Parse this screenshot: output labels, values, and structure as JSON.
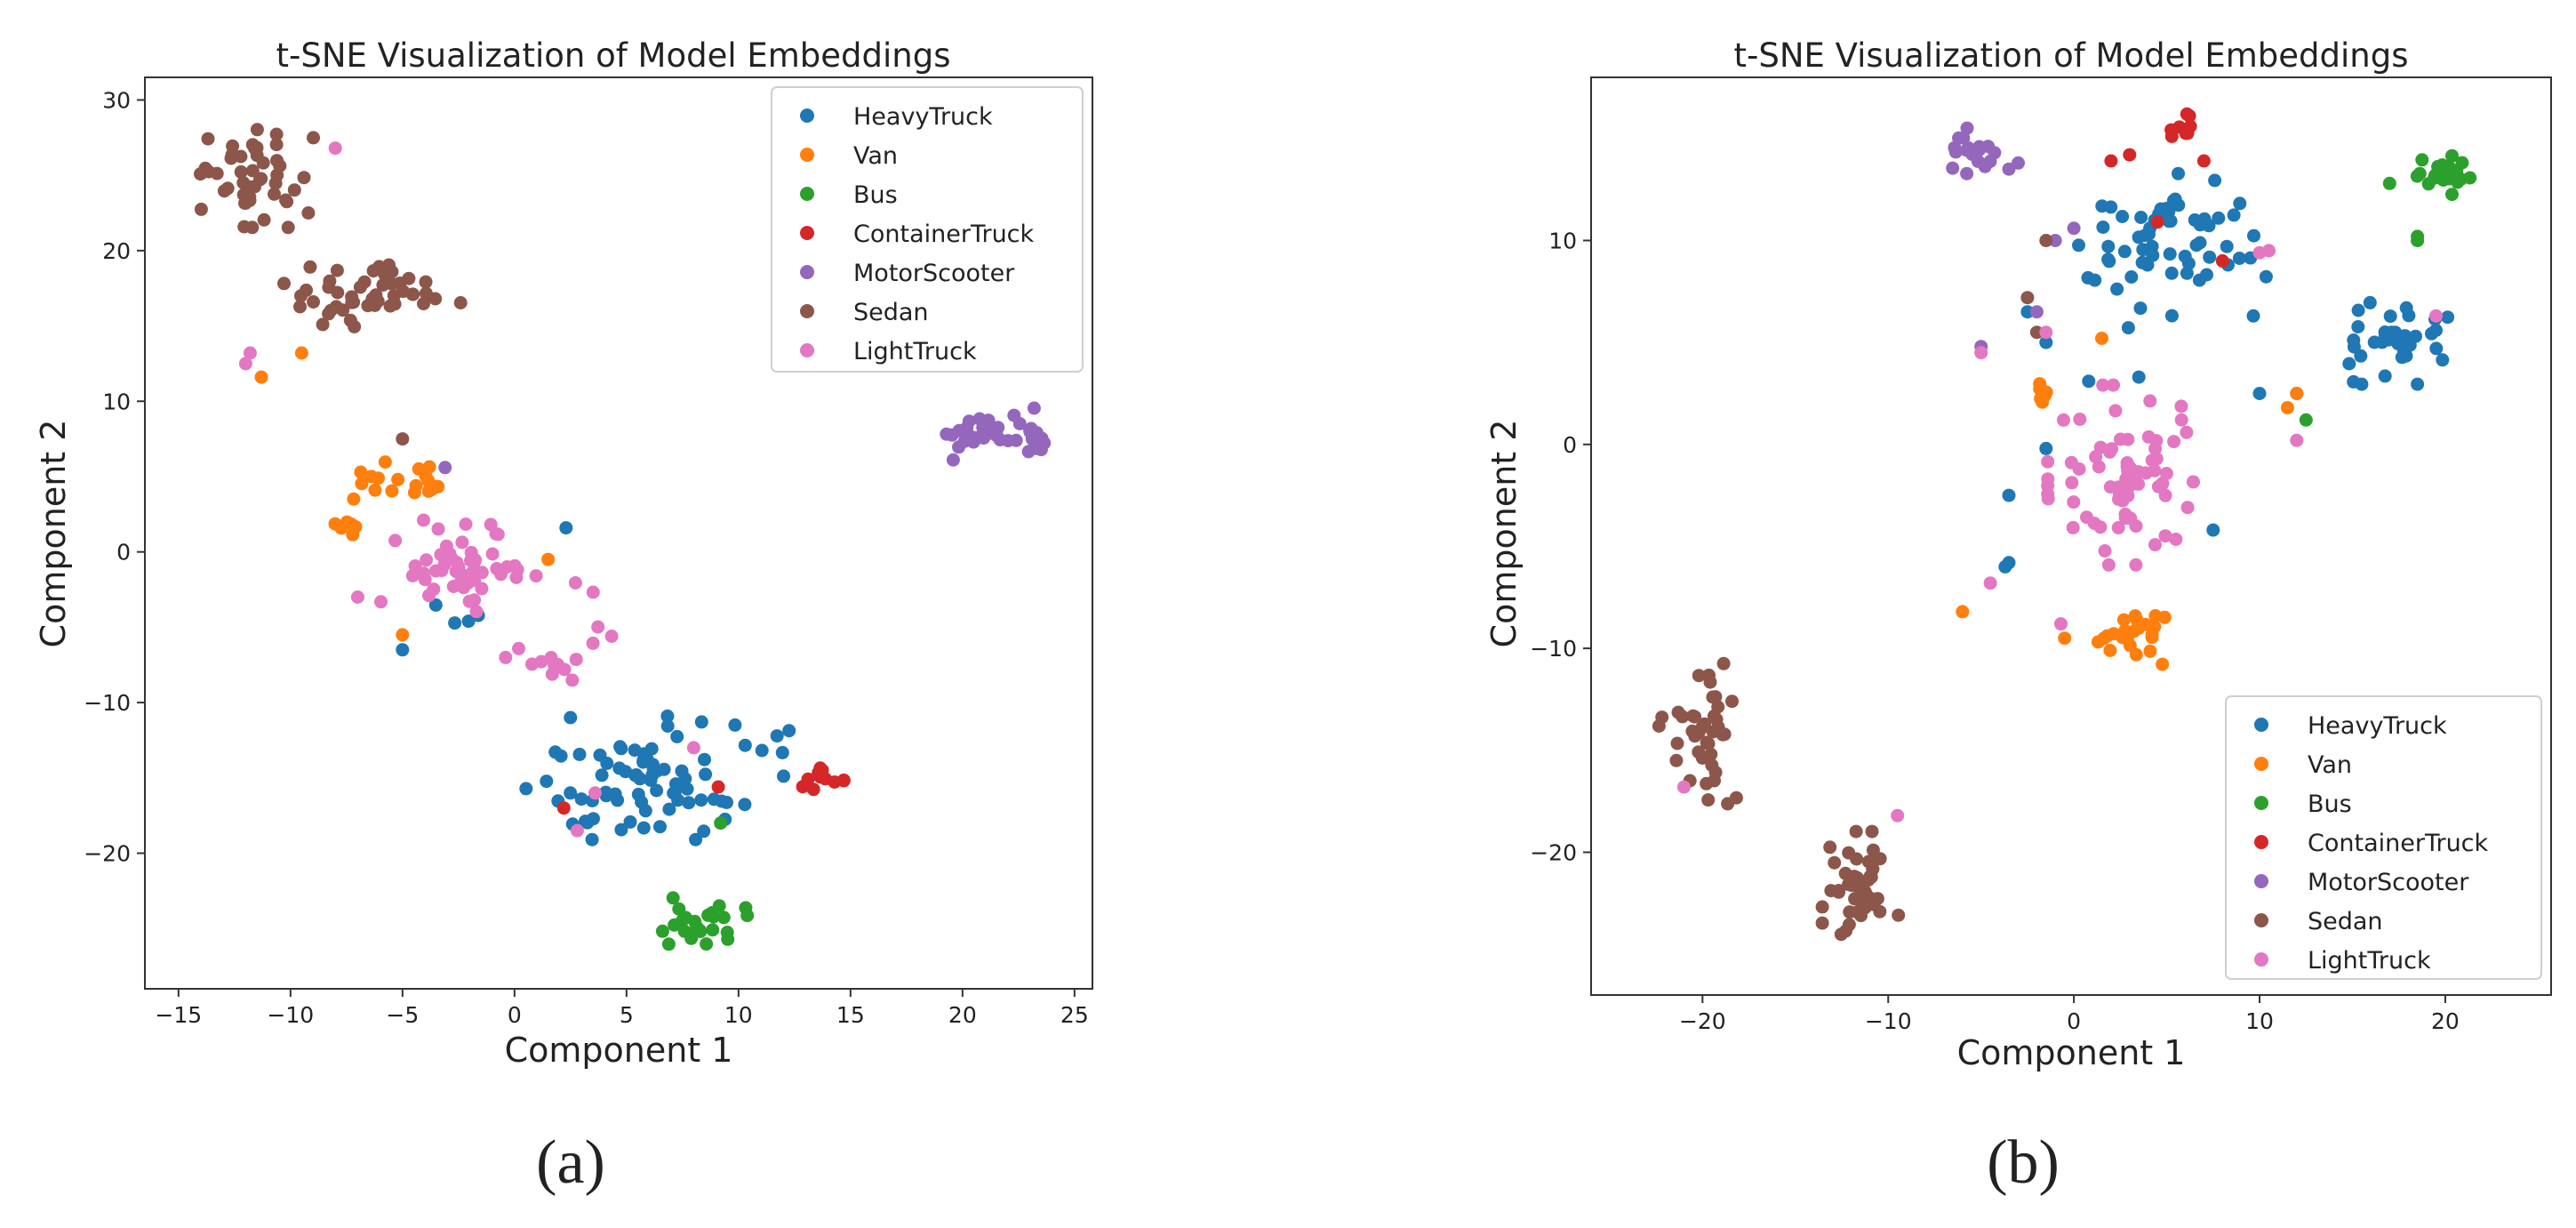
{
  "figure": {
    "colors": {
      "HeavyTruck": "#1f77b4",
      "Van": "#ff7f0e",
      "Bus": "#2ca02c",
      "ContainerTruck": "#d62728",
      "MotorScooter": "#9467bd",
      "Sedan": "#8c564b",
      "LightTruck": "#e377c2"
    }
  },
  "chart_data": [
    {
      "type": "scatter",
      "panel_label": "(a)",
      "title": "t-SNE Visualization of Model Embeddings",
      "xlabel": "Component 1",
      "ylabel": "Component 2",
      "xlim": [
        -16.5,
        25.8
      ],
      "ylim": [
        -29,
        31.5
      ],
      "xticks": [
        -15,
        -10,
        -5,
        0,
        5,
        10,
        15,
        20,
        25
      ],
      "yticks": [
        -20,
        -10,
        0,
        10,
        20,
        30
      ],
      "legend_position": "top-right",
      "series": [
        {
          "name": "HeavyTruck",
          "clusters": [
            {
              "center": [
                5.5,
                -15
              ],
              "spread": [
                3.2,
                2.6
              ],
              "n": 72
            },
            {
              "center": [
                11.5,
                -13
              ],
              "spread": [
                1.2,
                1.2
              ],
              "n": 6
            },
            {
              "center": [
                -3.5,
                -4.5
              ],
              "spread": [
                1.3,
                1.2
              ],
              "n": 4
            }
          ],
          "extra": [
            [
              2.3,
              1.6
            ],
            [
              -5,
              -6.5
            ],
            [
              2.5,
              -11
            ]
          ]
        },
        {
          "name": "Van",
          "clusters": [
            {
              "center": [
                -4.5,
                5
              ],
              "spread": [
                1.5,
                1.1
              ],
              "n": 18
            },
            {
              "center": [
                -7.5,
                2
              ],
              "spread": [
                0.6,
                1.2
              ],
              "n": 7
            }
          ],
          "extra": [
            [
              -9.5,
              13.2
            ],
            [
              -11.3,
              11.6
            ],
            [
              1.5,
              -0.5
            ],
            [
              -5,
              -5.5
            ]
          ]
        },
        {
          "name": "Bus",
          "clusters": [
            {
              "center": [
                8.5,
                -24.7
              ],
              "spread": [
                1.2,
                1.1
              ],
              "n": 26
            }
          ],
          "extra": [
            [
              9.2,
              -18
            ]
          ]
        },
        {
          "name": "ContainerTruck",
          "clusters": [
            {
              "center": [
                13.6,
                -15
              ],
              "spread": [
                0.7,
                0.6
              ],
              "n": 11
            }
          ],
          "extra": [
            [
              2.2,
              -17
            ],
            [
              9.1,
              -15.6
            ]
          ]
        },
        {
          "name": "MotorScooter",
          "clusters": [
            {
              "center": [
                21.5,
                8
              ],
              "spread": [
                1.6,
                1.2
              ],
              "n": 42
            }
          ],
          "extra": [
            [
              -3.1,
              5.6
            ]
          ]
        },
        {
          "name": "Sedan",
          "clusters": [
            {
              "center": [
                -11.5,
                25
              ],
              "spread": [
                1.6,
                2.2
              ],
              "n": 48
            },
            {
              "center": [
                -6.5,
                17
              ],
              "spread": [
                2.6,
                1.3
              ],
              "n": 48
            }
          ],
          "extra": [
            [
              -5,
              7.5
            ]
          ]
        },
        {
          "name": "LightTruck",
          "clusters": [
            {
              "center": [
                -2.5,
                -1
              ],
              "spread": [
                2.2,
                2.2
              ],
              "n": 50
            },
            {
              "center": [
                1.5,
                -6
              ],
              "spread": [
                1.8,
                2.6
              ],
              "n": 16
            }
          ],
          "extra": [
            [
              -8,
              26.8
            ],
            [
              -12,
              12.5
            ],
            [
              -11.8,
              13.2
            ],
            [
              -7,
              -3
            ],
            [
              8,
              -13
            ],
            [
              3.6,
              -16
            ],
            [
              2.8,
              -18.5
            ]
          ]
        }
      ]
    },
    {
      "type": "scatter",
      "panel_label": "(b)",
      "title": "t-SNE Visualization of Model Embeddings",
      "xlabel": "Component 1",
      "ylabel": "Component 2",
      "xlim": [
        -26,
        25.7
      ],
      "ylim": [
        -27,
        18
      ],
      "xticks": [
        -20,
        -10,
        0,
        10,
        20
      ],
      "yticks": [
        -20,
        -10,
        0,
        10
      ],
      "legend_position": "bottom-right",
      "series": [
        {
          "name": "HeavyTruck",
          "clusters": [
            {
              "center": [
                5,
                9.5
              ],
              "spread": [
                3.4,
                2.4
              ],
              "n": 62
            },
            {
              "center": [
                17.5,
                5
              ],
              "spread": [
                1.7,
                1.3
              ],
              "n": 38
            }
          ],
          "extra": [
            [
              -3.5,
              -2.5
            ],
            [
              -3.5,
              -5.8
            ],
            [
              -3.7,
              -6
            ],
            [
              -1.5,
              5
            ],
            [
              -2.5,
              6.5
            ],
            [
              0.8,
              3.1
            ],
            [
              3.5,
              3.3
            ],
            [
              10,
              2.5
            ],
            [
              12,
              2.5
            ],
            [
              7.5,
              -4.2
            ],
            [
              -1.5,
              -0.2
            ]
          ]
        },
        {
          "name": "Van",
          "clusters": [
            {
              "center": [
                3,
                -9.5
              ],
              "spread": [
                1.2,
                1.1
              ],
              "n": 24
            },
            {
              "center": [
                -1.5,
                2.5
              ],
              "spread": [
                0.4,
                0.9
              ],
              "n": 6
            }
          ],
          "extra": [
            [
              -6,
              -8.2
            ],
            [
              -0.5,
              -9.5
            ],
            [
              1.5,
              5.2
            ],
            [
              11.5,
              1.8
            ],
            [
              12,
              2.5
            ]
          ]
        },
        {
          "name": "Bus",
          "clusters": [
            {
              "center": [
                20,
                13.3
              ],
              "spread": [
                1.2,
                0.8
              ],
              "n": 22
            }
          ],
          "extra": [
            [
              17,
              12.8
            ],
            [
              18.5,
              10.2
            ],
            [
              18.5,
              10
            ],
            [
              12.5,
              1.2
            ]
          ]
        },
        {
          "name": "ContainerTruck",
          "clusters": [
            {
              "center": [
                5.6,
                15.6
              ],
              "spread": [
                0.5,
                0.4
              ],
              "n": 8
            }
          ],
          "extra": [
            [
              2,
              13.9
            ],
            [
              3,
              14.2
            ],
            [
              7,
              13.9
            ],
            [
              8,
              9
            ],
            [
              4.5,
              10.9
            ]
          ]
        },
        {
          "name": "MotorScooter",
          "clusters": [
            {
              "center": [
                -5.5,
                14.7
              ],
              "spread": [
                1,
                0.9
              ],
              "n": 18
            }
          ],
          "extra": [
            [
              -3.5,
              13.5
            ],
            [
              -3,
              13.8
            ],
            [
              0,
              10.6
            ],
            [
              -1,
              10
            ],
            [
              -2,
              6.5
            ],
            [
              -5,
              4.8
            ]
          ]
        },
        {
          "name": "Sedan",
          "clusters": [
            {
              "center": [
                -20,
                -14
              ],
              "spread": [
                1.6,
                2.3
              ],
              "n": 40
            },
            {
              "center": [
                -11.5,
                -21.5
              ],
              "spread": [
                1.3,
                1.6
              ],
              "n": 44
            }
          ],
          "extra": [
            [
              -2.5,
              7.2
            ],
            [
              -1.5,
              10
            ],
            [
              -2,
              5.5
            ]
          ]
        },
        {
          "name": "LightTruck",
          "clusters": [
            {
              "center": [
                3,
                -1.5
              ],
              "spread": [
                2.8,
                2.8
              ],
              "n": 72
            }
          ],
          "extra": [
            [
              -9.5,
              -18.2
            ],
            [
              -21,
              -16.8
            ],
            [
              -0.7,
              -8.8
            ],
            [
              10,
              9.4
            ],
            [
              10.5,
              9.5
            ],
            [
              19.5,
              6.3
            ],
            [
              12,
              0.2
            ],
            [
              -5,
              4.5
            ],
            [
              -4.5,
              -6.8
            ],
            [
              -1.5,
              5.5
            ]
          ]
        }
      ]
    }
  ]
}
